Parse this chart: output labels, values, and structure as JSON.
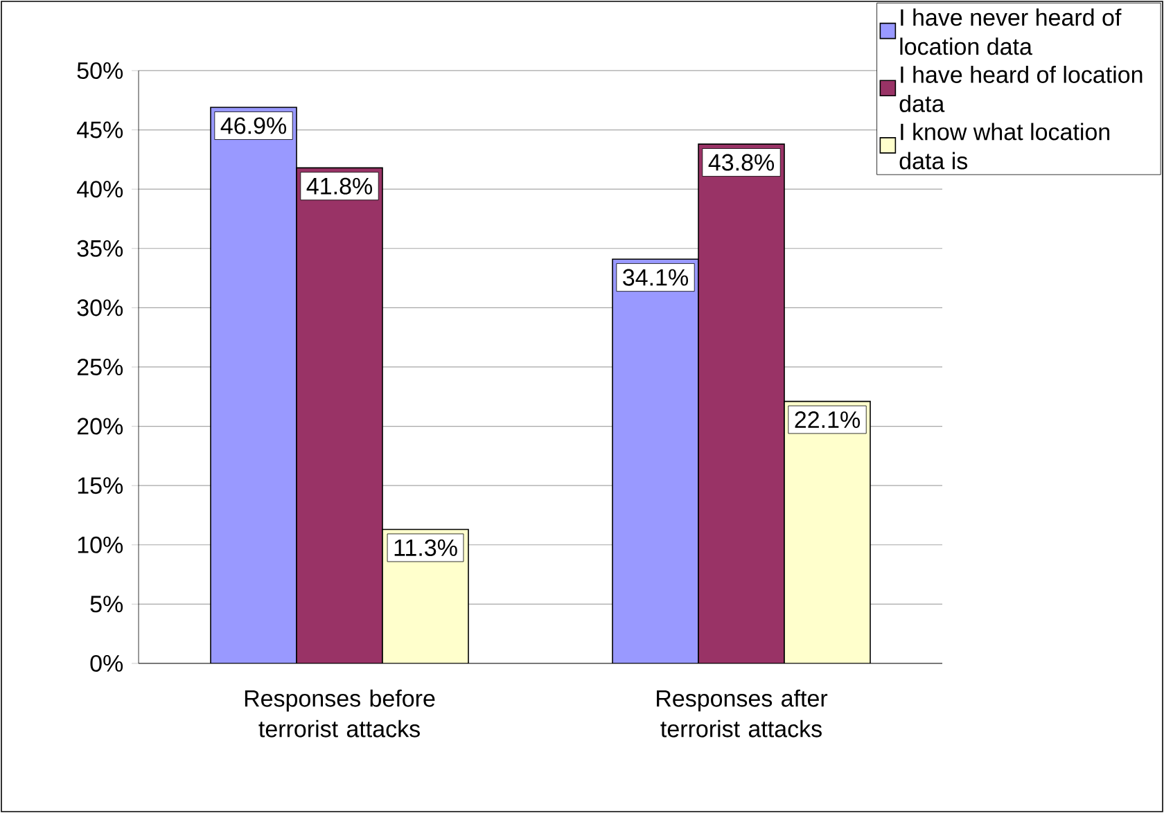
{
  "chart_data": {
    "type": "bar",
    "categories": [
      "Responses before terrorist attacks",
      "Responses after terrorist attacks"
    ],
    "series": [
      {
        "name": "I have never heard of location data",
        "color": "#9999ff",
        "values": [
          46.9,
          34.1
        ],
        "value_labels": [
          "46.9%",
          "34.1%"
        ]
      },
      {
        "name": "I have heard of location data",
        "color": "#993366",
        "values": [
          41.8,
          43.8
        ],
        "value_labels": [
          "41.8%",
          "43.8%"
        ]
      },
      {
        "name": "I know what location data is",
        "color": "#ffffcc",
        "values": [
          11.3,
          22.1
        ],
        "value_labels": [
          "11.3%",
          "22.1%"
        ]
      }
    ],
    "ylim": [
      0,
      50
    ],
    "yticks": [
      {
        "value": 0,
        "label": "0%"
      },
      {
        "value": 5,
        "label": "5%"
      },
      {
        "value": 10,
        "label": "10%"
      },
      {
        "value": 15,
        "label": "15%"
      },
      {
        "value": 20,
        "label": "20%"
      },
      {
        "value": 25,
        "label": "25%"
      },
      {
        "value": 30,
        "label": "30%"
      },
      {
        "value": 35,
        "label": "35%"
      },
      {
        "value": 40,
        "label": "40%"
      },
      {
        "value": 45,
        "label": "45%"
      },
      {
        "value": 50,
        "label": "50%"
      }
    ],
    "grid": "y",
    "legend": "top right"
  }
}
